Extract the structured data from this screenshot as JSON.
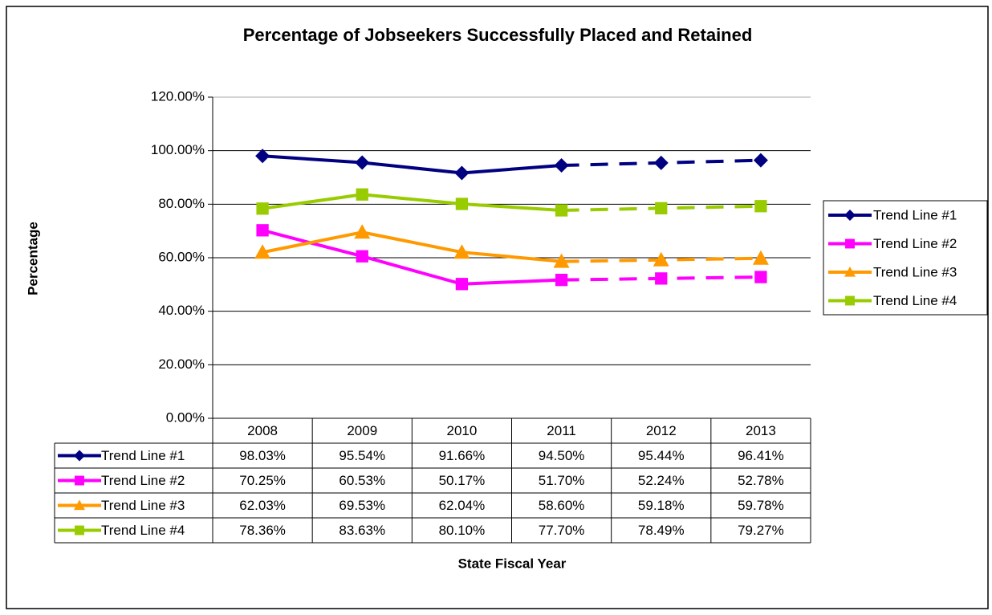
{
  "chart_data": {
    "type": "line",
    "title": "Percentage of Jobseekers Successfully Placed and Retained",
    "x_label": "State Fiscal Year",
    "y_label": "Percentage",
    "categories": [
      "2008",
      "2009",
      "2010",
      "2011",
      "2012",
      "2013"
    ],
    "ylim": [
      0,
      120
    ],
    "yticks": [
      {
        "value": 0,
        "label": "0.00%"
      },
      {
        "value": 20,
        "label": "20.00%"
      },
      {
        "value": 40,
        "label": "40.00%"
      },
      {
        "value": 60,
        "label": "60.00%"
      },
      {
        "value": 80,
        "label": "80.00%"
      },
      {
        "value": 100,
        "label": "100.00%"
      },
      {
        "value": 120,
        "label": "120.00%"
      }
    ],
    "grid": true,
    "legend": "right",
    "dashed_from": 3,
    "series": [
      {
        "name": "Trend Line #1",
        "color": "#000080",
        "marker": "diamond",
        "values": [
          98.03,
          95.54,
          91.66,
          94.5,
          95.44,
          96.41
        ],
        "value_labels": [
          "98.03%",
          "95.54%",
          "91.66%",
          "94.50%",
          "95.44%",
          "96.41%"
        ]
      },
      {
        "name": "Trend Line #2",
        "color": "#FF00FF",
        "marker": "square",
        "values": [
          70.25,
          60.53,
          50.17,
          51.7,
          52.24,
          52.78
        ],
        "value_labels": [
          "70.25%",
          "60.53%",
          "50.17%",
          "51.70%",
          "52.24%",
          "52.78%"
        ]
      },
      {
        "name": "Trend Line #3",
        "color": "#FF9900",
        "marker": "triangle",
        "values": [
          62.03,
          69.53,
          62.04,
          58.6,
          59.18,
          59.78
        ],
        "value_labels": [
          "62.03%",
          "69.53%",
          "62.04%",
          "58.60%",
          "59.18%",
          "59.78%"
        ]
      },
      {
        "name": "Trend Line #4",
        "color": "#99CC00",
        "marker": "square",
        "values": [
          78.36,
          83.63,
          80.1,
          77.7,
          78.49,
          79.27
        ],
        "value_labels": [
          "78.36%",
          "83.63%",
          "80.10%",
          "77.70%",
          "78.49%",
          "79.27%"
        ]
      }
    ]
  }
}
